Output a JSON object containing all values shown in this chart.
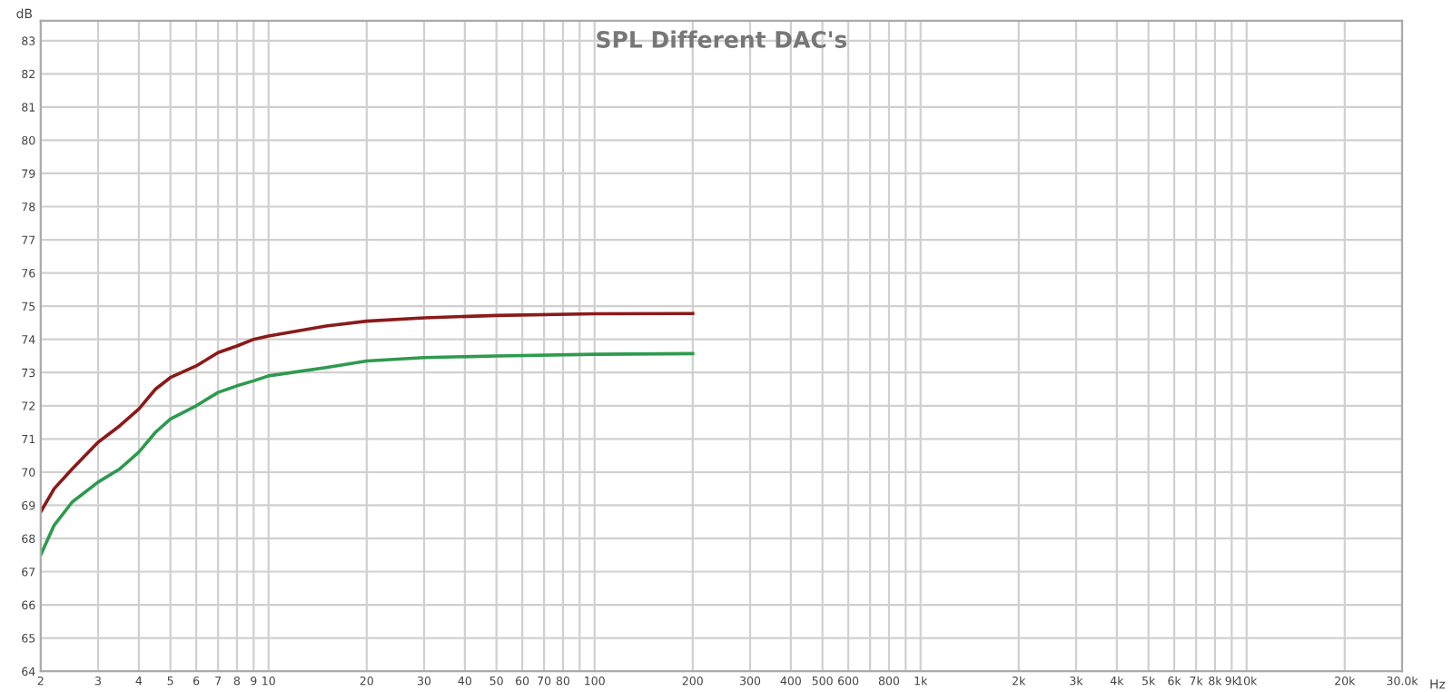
{
  "chart_data": {
    "type": "line",
    "title": "SPL Different DAC's",
    "ylabel": "dB",
    "xlabel": "Hz",
    "log": "x",
    "grid": true,
    "marker": "none",
    "line_style": "solid",
    "xlim": [
      2,
      30000
    ],
    "ylim": [
      64,
      83.6
    ],
    "xticks": [
      2,
      3,
      4,
      5,
      6,
      7,
      8,
      9,
      10,
      20,
      30,
      40,
      50,
      60,
      70,
      80,
      {
        "value": 90,
        "label": null
      },
      100,
      200,
      300,
      400,
      500,
      600,
      {
        "value": 700,
        "label": null
      },
      800,
      {
        "value": 900,
        "label": null
      },
      {
        "value": 1000,
        "label": "1k"
      },
      {
        "value": 2000,
        "label": "2k"
      },
      {
        "value": 3000,
        "label": "3k"
      },
      {
        "value": 4000,
        "label": "4k"
      },
      {
        "value": 5000,
        "label": "5k"
      },
      {
        "value": 6000,
        "label": "6k"
      },
      {
        "value": 7000,
        "label": "7k"
      },
      {
        "value": 8000,
        "label": "8k"
      },
      {
        "value": 9000,
        "label": "9k"
      },
      {
        "value": 10000,
        "label": "10k"
      },
      {
        "value": 20000,
        "label": "20k"
      },
      {
        "value": 30000,
        "label": "30.0k"
      }
    ],
    "yticks": [
      64,
      65,
      66,
      67,
      68,
      69,
      70,
      71,
      72,
      73,
      74,
      75,
      76,
      77,
      78,
      79,
      80,
      81,
      82,
      83
    ],
    "series": [
      {
        "color": "#8b1a1a",
        "x": [
          2,
          2.2,
          2.5,
          3,
          3.5,
          4,
          4.5,
          5,
          6,
          7,
          8,
          9,
          10,
          15,
          20,
          30,
          50,
          100,
          200
        ],
        "values": [
          68.8,
          69.5,
          70.1,
          70.9,
          71.4,
          71.9,
          72.5,
          72.85,
          73.2,
          73.6,
          73.8,
          74.0,
          74.1,
          74.4,
          74.55,
          74.65,
          74.72,
          74.77,
          74.78
        ]
      },
      {
        "color": "#2e9a4e",
        "x": [
          2,
          2.2,
          2.5,
          3,
          3.5,
          4,
          4.5,
          5,
          6,
          7,
          8,
          9,
          10,
          15,
          20,
          30,
          50,
          100,
          200
        ],
        "values": [
          67.5,
          68.4,
          69.1,
          69.7,
          70.1,
          70.6,
          71.2,
          71.6,
          72.0,
          72.4,
          72.6,
          72.75,
          72.9,
          73.15,
          73.35,
          73.45,
          73.5,
          73.55,
          73.57
        ]
      }
    ]
  }
}
